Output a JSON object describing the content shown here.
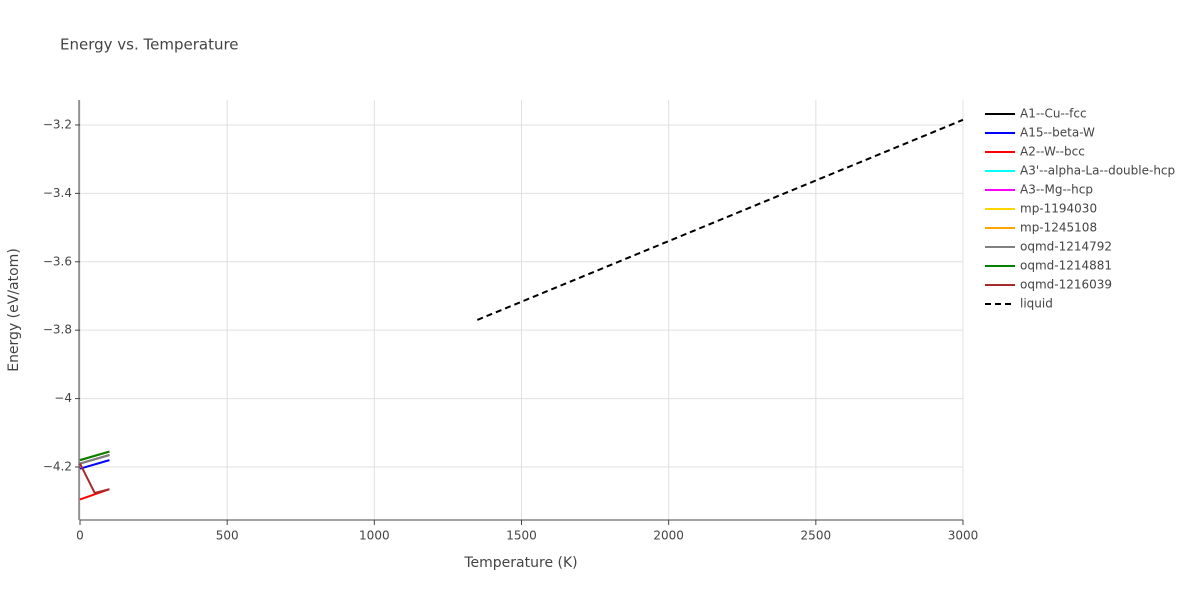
{
  "chart_data": {
    "type": "line",
    "title": "Energy vs. Temperature",
    "x_label": "Temperature (K)",
    "y_label": "Energy (eV/atom)",
    "xlim": [
      0,
      3000
    ],
    "ylim": [
      -4.355,
      -3.127
    ],
    "xticks": [
      0,
      500,
      1000,
      1500,
      2000,
      2500,
      3000
    ],
    "yticks": [
      {
        "value": -4.2,
        "label": "−4.2"
      },
      {
        "value": -4,
        "label": "−4"
      },
      {
        "value": -3.8,
        "label": "−3.8"
      },
      {
        "value": -3.6,
        "label": "−3.6"
      },
      {
        "value": -3.4,
        "label": "−3.4"
      },
      {
        "value": -3.2,
        "label": "−3.2"
      }
    ],
    "grid": true,
    "legend": "right",
    "series": [
      {
        "name": "A1--Cu--fcc",
        "color": "#000000",
        "x": [
          0,
          100
        ],
        "values": [
          -4.19,
          -4.165
        ]
      },
      {
        "name": "A15--beta-W",
        "color": "#0000ff",
        "x": [
          0,
          100
        ],
        "values": [
          -4.205,
          -4.18
        ]
      },
      {
        "name": "A2--W--bcc",
        "color": "#ff0000",
        "x": [
          0,
          100
        ],
        "values": [
          -4.295,
          -4.265
        ]
      },
      {
        "name": "A3'--alpha-La--double-hcp",
        "color": "#00ffff",
        "x": [
          0,
          100
        ],
        "values": [
          -4.18,
          -4.155
        ]
      },
      {
        "name": "A3--Mg--hcp",
        "color": "#ff00ff",
        "x": [
          0,
          100
        ],
        "values": [
          -4.18,
          -4.155
        ]
      },
      {
        "name": "mp-1194030",
        "color": "#ffd700",
        "x": [
          0,
          100
        ],
        "values": [
          -4.18,
          -4.155
        ]
      },
      {
        "name": "mp-1245108",
        "color": "#ffa500",
        "x": [
          0,
          100
        ],
        "values": [
          -4.18,
          -4.155
        ]
      },
      {
        "name": "oqmd-1214792",
        "color": "#808080",
        "x": [
          0,
          100
        ],
        "values": [
          -4.19,
          -4.165
        ]
      },
      {
        "name": "oqmd-1214881",
        "color": "#008000",
        "x": [
          0,
          100
        ],
        "values": [
          -4.18,
          -4.155
        ]
      },
      {
        "name": "oqmd-1216039",
        "color": "#a52a2a",
        "x": [
          0,
          50,
          100
        ],
        "values": [
          -4.19,
          -4.276,
          -4.265
        ]
      },
      {
        "name": "liquid",
        "color": "#000000",
        "dash": "dash",
        "x": [
          1350,
          3000
        ],
        "values": [
          -3.77,
          -3.185
        ]
      }
    ]
  }
}
